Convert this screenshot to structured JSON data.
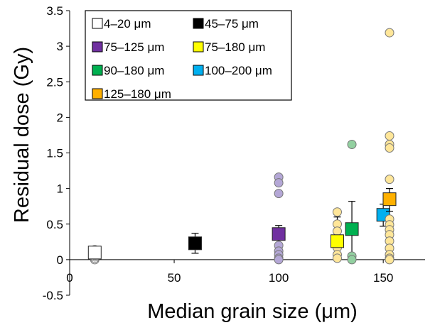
{
  "chart_data": {
    "type": "scatter",
    "title": "",
    "xlabel": "Median grain size (μm)",
    "ylabel": "Residual dose (Gy)",
    "xlim": [
      0,
      170
    ],
    "ylim": [
      -0.5,
      3.5
    ],
    "x_ticks": [
      0,
      50,
      100,
      150
    ],
    "y_ticks": [
      -0.5,
      0,
      0.5,
      1,
      1.5,
      2,
      2.5,
      3,
      3.5
    ],
    "x_tick_labels": [
      "0",
      "50",
      "100",
      "150"
    ],
    "y_tick_labels": [
      "-0.5",
      "0",
      "0.5",
      "1",
      "1.5",
      "2",
      "2.5",
      "3",
      "3.5"
    ],
    "grid": false,
    "legend_position": "top-left",
    "series": [
      {
        "name": "4–20 μm",
        "color": "#ffffff",
        "individual_color": "#ffffff",
        "x": 12,
        "mean": 0.1,
        "error": [
          0.0,
          0.13
        ],
        "individual": [
          0.0,
          0.02,
          0.04,
          0.06,
          0.08,
          0.1,
          0.12,
          0.14
        ]
      },
      {
        "name": "45–75 μm",
        "color": "#000000",
        "individual_color": "#000000",
        "x": 60,
        "mean": 0.23,
        "error": [
          0.09,
          0.37
        ],
        "individual": []
      },
      {
        "name": "75–125 μm",
        "color": "#7030a0",
        "individual_color": "#b4a7d6",
        "x": 100,
        "mean": 0.36,
        "error": [
          0.08,
          0.48
        ],
        "individual": [
          1.16,
          1.08,
          0.93,
          0.35,
          0.2,
          0.12,
          0.07,
          0.02,
          0.0
        ]
      },
      {
        "name": "75–180 μm",
        "color": "#ffff00",
        "individual_color": "#ffe699",
        "x": 128,
        "mean": 0.26,
        "error": [
          0.0,
          0.6
        ],
        "individual": [
          0.67,
          0.5,
          0.4,
          0.27,
          0.17,
          0.07,
          0.02
        ]
      },
      {
        "name": "90–180 μm",
        "color": "#00b050",
        "individual_color": "#92d0a0",
        "x": 135,
        "mean": 0.43,
        "error": [
          0.02,
          0.82
        ],
        "individual": [
          1.62,
          0.05,
          0.0
        ]
      },
      {
        "name": "100–200 μm",
        "color": "#00b0f0",
        "individual_color": "#9dc3e6",
        "x": 150,
        "mean": 0.63,
        "error": [
          0.47,
          0.78
        ],
        "individual": []
      },
      {
        "name": "125–180 μm",
        "color": "#ffb000",
        "individual_color": "#ffe699",
        "x": 153,
        "mean": 0.85,
        "error": [
          0.68,
          1.0
        ],
        "individual": [
          3.19,
          1.74,
          1.62,
          1.57,
          1.13,
          0.88,
          0.57,
          0.49,
          0.42,
          0.35,
          0.26,
          0.16,
          0.07,
          0.02,
          0.0
        ]
      }
    ]
  }
}
